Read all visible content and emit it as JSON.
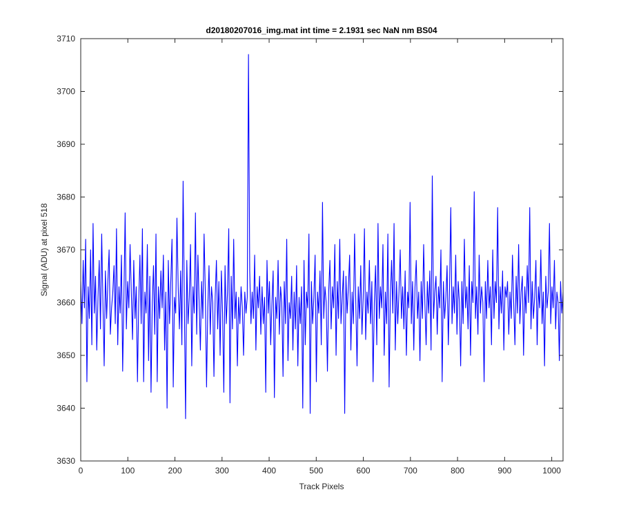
{
  "chart_data": {
    "type": "line",
    "title": "d20180207016_img.mat int time = 2.1931 sec  NaN nm BS04",
    "xlabel": "Track Pixels",
    "ylabel": "Signal (ADU) at pixel 518",
    "xlim": [
      0,
      1024
    ],
    "ylim": [
      3630,
      3710
    ],
    "xticks": [
      "0",
      "100",
      "200",
      "300",
      "400",
      "500",
      "600",
      "700",
      "800",
      "900",
      "1000"
    ],
    "yticks": [
      "3630",
      "3640",
      "3650",
      "3660",
      "3670",
      "3680",
      "3690",
      "3700",
      "3710"
    ],
    "grid": false,
    "legend": "none",
    "series_color": "#0000ff",
    "series": [
      {
        "values": [
          3664,
          3656,
          3668,
          3659,
          3672,
          3645,
          3663,
          3657,
          3670,
          3652,
          3675,
          3658,
          3665,
          3651,
          3661,
          3668,
          3655,
          3673,
          3660,
          3648,
          3666,
          3657,
          3664,
          3670,
          3654,
          3659,
          3662,
          3667,
          3656,
          3674,
          3652,
          3663,
          3658,
          3669,
          3647,
          3661,
          3677,
          3655,
          3664,
          3659,
          3671,
          3662,
          3653,
          3668,
          3657,
          3663,
          3645,
          3660,
          3669,
          3656,
          3674,
          3645,
          3662,
          3658,
          3671,
          3649,
          3665,
          3643,
          3660,
          3667,
          3654,
          3673,
          3645,
          3663,
          3657,
          3666,
          3659,
          3669,
          3651,
          3662,
          3640,
          3668,
          3656,
          3664,
          3672,
          3644,
          3661,
          3658,
          3676,
          3663,
          3655,
          3666,
          3652,
          3683,
          3660,
          3638,
          3668,
          3656,
          3661,
          3671,
          3648,
          3663,
          3658,
          3677,
          3654,
          3669,
          3660,
          3651,
          3664,
          3657,
          3673,
          3662,
          3644,
          3659,
          3667,
          3654,
          3663,
          3660,
          3646,
          3661,
          3668,
          3655,
          3664,
          3650,
          3666,
          3658,
          3643,
          3667,
          3656,
          3662,
          3674,
          3641,
          3665,
          3655,
          3672,
          3657,
          3662,
          3648,
          3661,
          3656,
          3663,
          3659,
          3650,
          3662,
          3658,
          3661,
          3707,
          3666,
          3656,
          3662,
          3657,
          3669,
          3651,
          3663,
          3659,
          3665,
          3654,
          3663,
          3656,
          3661,
          3643,
          3668,
          3658,
          3664,
          3652,
          3660,
          3666,
          3642,
          3661,
          3657,
          3668,
          3654,
          3663,
          3660,
          3646,
          3664,
          3656,
          3672,
          3649,
          3660,
          3657,
          3665,
          3651,
          3662,
          3655,
          3667,
          3648,
          3661,
          3656,
          3663,
          3640,
          3668,
          3652,
          3662,
          3659,
          3673,
          3639,
          3664,
          3656,
          3661,
          3669,
          3645,
          3662,
          3658,
          3666,
          3652,
          3679,
          3657,
          3663,
          3660,
          3647,
          3662,
          3668,
          3655,
          3663,
          3659,
          3671,
          3650,
          3664,
          3657,
          3672,
          3656,
          3661,
          3666,
          3639,
          3665,
          3658,
          3663,
          3669,
          3651,
          3662,
          3656,
          3673,
          3660,
          3648,
          3663,
          3657,
          3667,
          3654,
          3661,
          3674,
          3653,
          3662,
          3658,
          3668,
          3656,
          3664,
          3645,
          3660,
          3667,
          3652,
          3675,
          3657,
          3663,
          3659,
          3671,
          3650,
          3662,
          3656,
          3673,
          3644,
          3661,
          3668,
          3658,
          3675,
          3651,
          3664,
          3656,
          3662,
          3670,
          3657,
          3663,
          3655,
          3666,
          3650,
          3662,
          3659,
          3679,
          3656,
          3664,
          3651,
          3663,
          3668,
          3657,
          3662,
          3649,
          3664,
          3657,
          3671,
          3660,
          3652,
          3664,
          3658,
          3666,
          3651,
          3684,
          3657,
          3662,
          3665,
          3654,
          3663,
          3659,
          3670,
          3645,
          3664,
          3657,
          3661,
          3667,
          3652,
          3663,
          3678,
          3656,
          3663,
          3658,
          3669,
          3654,
          3664,
          3660,
          3648,
          3664,
          3656,
          3672,
          3659,
          3663,
          3655,
          3667,
          3650,
          3664,
          3660,
          3681,
          3657,
          3663,
          3654,
          3669,
          3658,
          3663,
          3660,
          3645,
          3664,
          3657,
          3668,
          3659,
          3663,
          3652,
          3670,
          3657,
          3664,
          3660,
          3678,
          3655,
          3663,
          3658,
          3666,
          3651,
          3663,
          3661,
          3664,
          3654,
          3662,
          3657,
          3669,
          3660,
          3652,
          3665,
          3658,
          3671,
          3656,
          3662,
          3665,
          3650,
          3663,
          3658,
          3667,
          3660,
          3678,
          3655,
          3664,
          3657,
          3661,
          3668,
          3652,
          3663,
          3659,
          3670,
          3656,
          3662,
          3648,
          3665,
          3659,
          3662,
          3675,
          3656,
          3663,
          3659,
          3668,
          3655,
          3662,
          3660,
          3649,
          3664,
          3658,
          3662
        ]
      }
    ]
  }
}
